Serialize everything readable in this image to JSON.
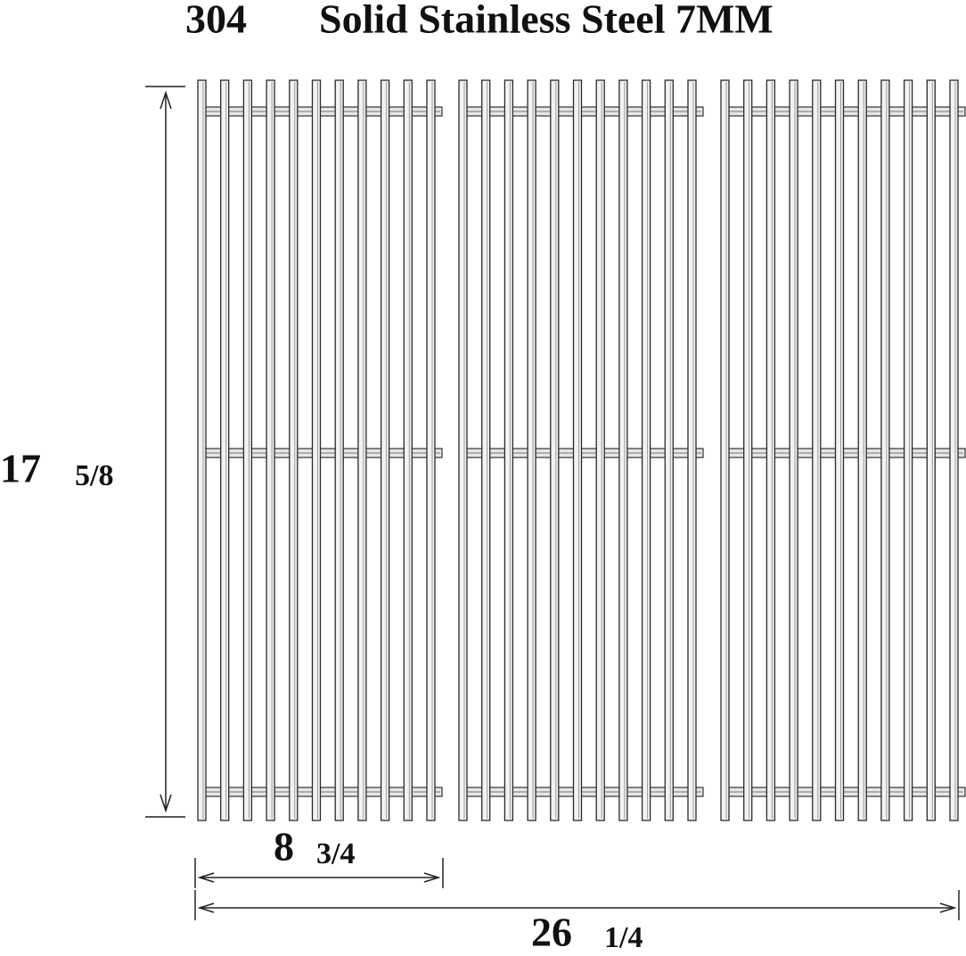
{
  "title": {
    "grade": "304",
    "text": "Solid Stainless Steel 7MM"
  },
  "dimensions": {
    "height": {
      "whole": "17",
      "fraction": "5/8"
    },
    "panel_width": {
      "whole": "8",
      "fraction": "3/4"
    },
    "total_width": {
      "whole": "26",
      "fraction": "1/4"
    }
  }
}
